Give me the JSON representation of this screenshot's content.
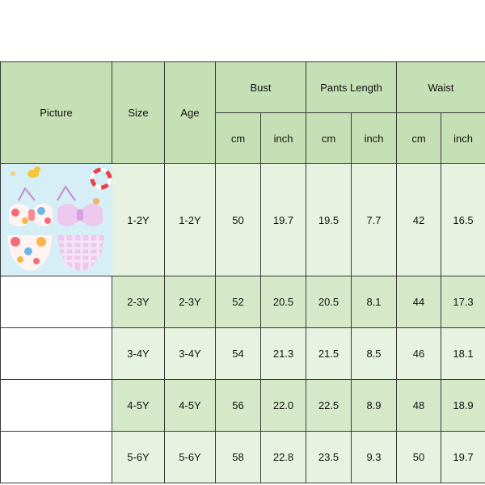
{
  "table": {
    "headers": {
      "picture": "Picture",
      "size": "Size",
      "age": "Age",
      "bust": "Bust",
      "pants_length": "Pants Length",
      "waist": "Waist",
      "units": [
        "cm",
        "inch",
        "cm",
        "inch",
        "cm",
        "inch"
      ]
    },
    "rows": [
      {
        "size": "1-2Y",
        "age": "1-2Y",
        "bust_cm": "50",
        "bust_inch": "19.7",
        "pants_cm": "19.5",
        "pants_inch": "7.7",
        "waist_cm": "42",
        "waist_inch": "16.5"
      },
      {
        "size": "2-3Y",
        "age": "2-3Y",
        "bust_cm": "52",
        "bust_inch": "20.5",
        "pants_cm": "20.5",
        "pants_inch": "8.1",
        "waist_cm": "44",
        "waist_inch": "17.3"
      },
      {
        "size": "3-4Y",
        "age": "3-4Y",
        "bust_cm": "54",
        "bust_inch": "21.3",
        "pants_cm": "21.5",
        "pants_inch": "8.5",
        "waist_cm": "46",
        "waist_inch": "18.1"
      },
      {
        "size": "4-5Y",
        "age": "4-5Y",
        "bust_cm": "56",
        "bust_inch": "22.0",
        "pants_cm": "22.5",
        "pants_inch": "8.9",
        "waist_cm": "48",
        "waist_inch": "18.9"
      },
      {
        "size": "5-6Y",
        "age": "5-6Y",
        "bust_cm": "58",
        "bust_inch": "22.8",
        "pants_cm": "23.5",
        "pants_inch": "9.3",
        "waist_cm": "50",
        "waist_inch": "19.7"
      }
    ]
  },
  "colors": {
    "header": "#c5e0b4",
    "row_dark": "#d5e8c8",
    "row_light": "#e8f2e0",
    "border": "#3a3a3a"
  }
}
